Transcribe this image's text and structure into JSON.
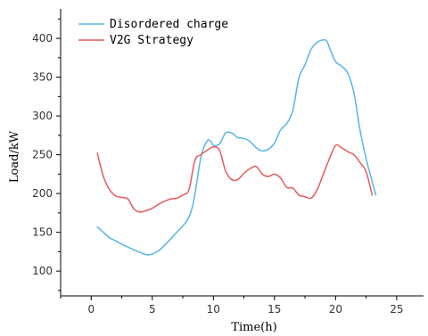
{
  "chart_data": {
    "type": "line",
    "title": "",
    "xlabel": "Time(h)",
    "ylabel": "Load/kW",
    "xlim": [
      -2.5,
      27.2
    ],
    "ylim": [
      68,
      438
    ],
    "xticks": [
      "0",
      "5",
      "10",
      "15",
      "20",
      "25"
    ],
    "yticks": [
      "100",
      "150",
      "200",
      "250",
      "300",
      "350",
      "400"
    ],
    "legend_position": "top-left",
    "grid": false,
    "series": [
      {
        "name": "Disordered charge",
        "color": "#56b6e8",
        "x": [
          0.5,
          1.0,
          1.5,
          2.0,
          3.0,
          4.0,
          4.6,
          5.0,
          5.5,
          6.0,
          7.0,
          7.8,
          8.2,
          8.5,
          9.0,
          9.5,
          9.8,
          10.0,
          10.5,
          11.0,
          11.5,
          12.0,
          12.5,
          13.0,
          13.5,
          14.0,
          14.5,
          15.0,
          15.5,
          16.0,
          16.5,
          17.0,
          17.5,
          18.0,
          18.5,
          19.0,
          19.3,
          19.6,
          20.0,
          20.5,
          21.0,
          21.5,
          22.0,
          22.5,
          23.0,
          23.3
        ],
        "y": [
          157,
          150,
          143,
          139,
          131,
          124,
          121,
          122,
          126,
          133,
          150,
          164,
          178,
          200,
          248,
          268,
          267,
          262,
          264,
          278,
          278,
          272,
          271,
          267,
          259,
          255,
          257,
          265,
          282,
          290,
          307,
          349,
          366,
          386,
          395,
          398,
          396,
          384,
          370,
          364,
          355,
          330,
          282,
          245,
          215,
          198
        ]
      },
      {
        "name": "V2G Strategy",
        "color": "#e85a5a",
        "x": [
          0.5,
          1.0,
          1.5,
          2.0,
          2.5,
          3.0,
          3.5,
          4.0,
          4.5,
          5.0,
          5.5,
          6.0,
          6.5,
          7.0,
          7.5,
          8.0,
          8.5,
          9.0,
          9.5,
          10.0,
          10.5,
          11.0,
          11.5,
          12.0,
          12.5,
          13.0,
          13.5,
          14.0,
          14.5,
          15.0,
          15.5,
          16.0,
          16.5,
          17.0,
          17.5,
          18.0,
          18.5,
          19.0,
          19.5,
          20.0,
          20.5,
          21.0,
          21.5,
          22.0,
          22.5,
          23.0
        ],
        "y": [
          252,
          222,
          205,
          197,
          195,
          193,
          180,
          176,
          178,
          181,
          186,
          190,
          193,
          194,
          198,
          205,
          243,
          250,
          256,
          260,
          256,
          229,
          218,
          218,
          226,
          232,
          235,
          225,
          222,
          225,
          220,
          208,
          207,
          198,
          196,
          194,
          205,
          225,
          245,
          262,
          259,
          254,
          250,
          240,
          228,
          198
        ]
      }
    ]
  }
}
